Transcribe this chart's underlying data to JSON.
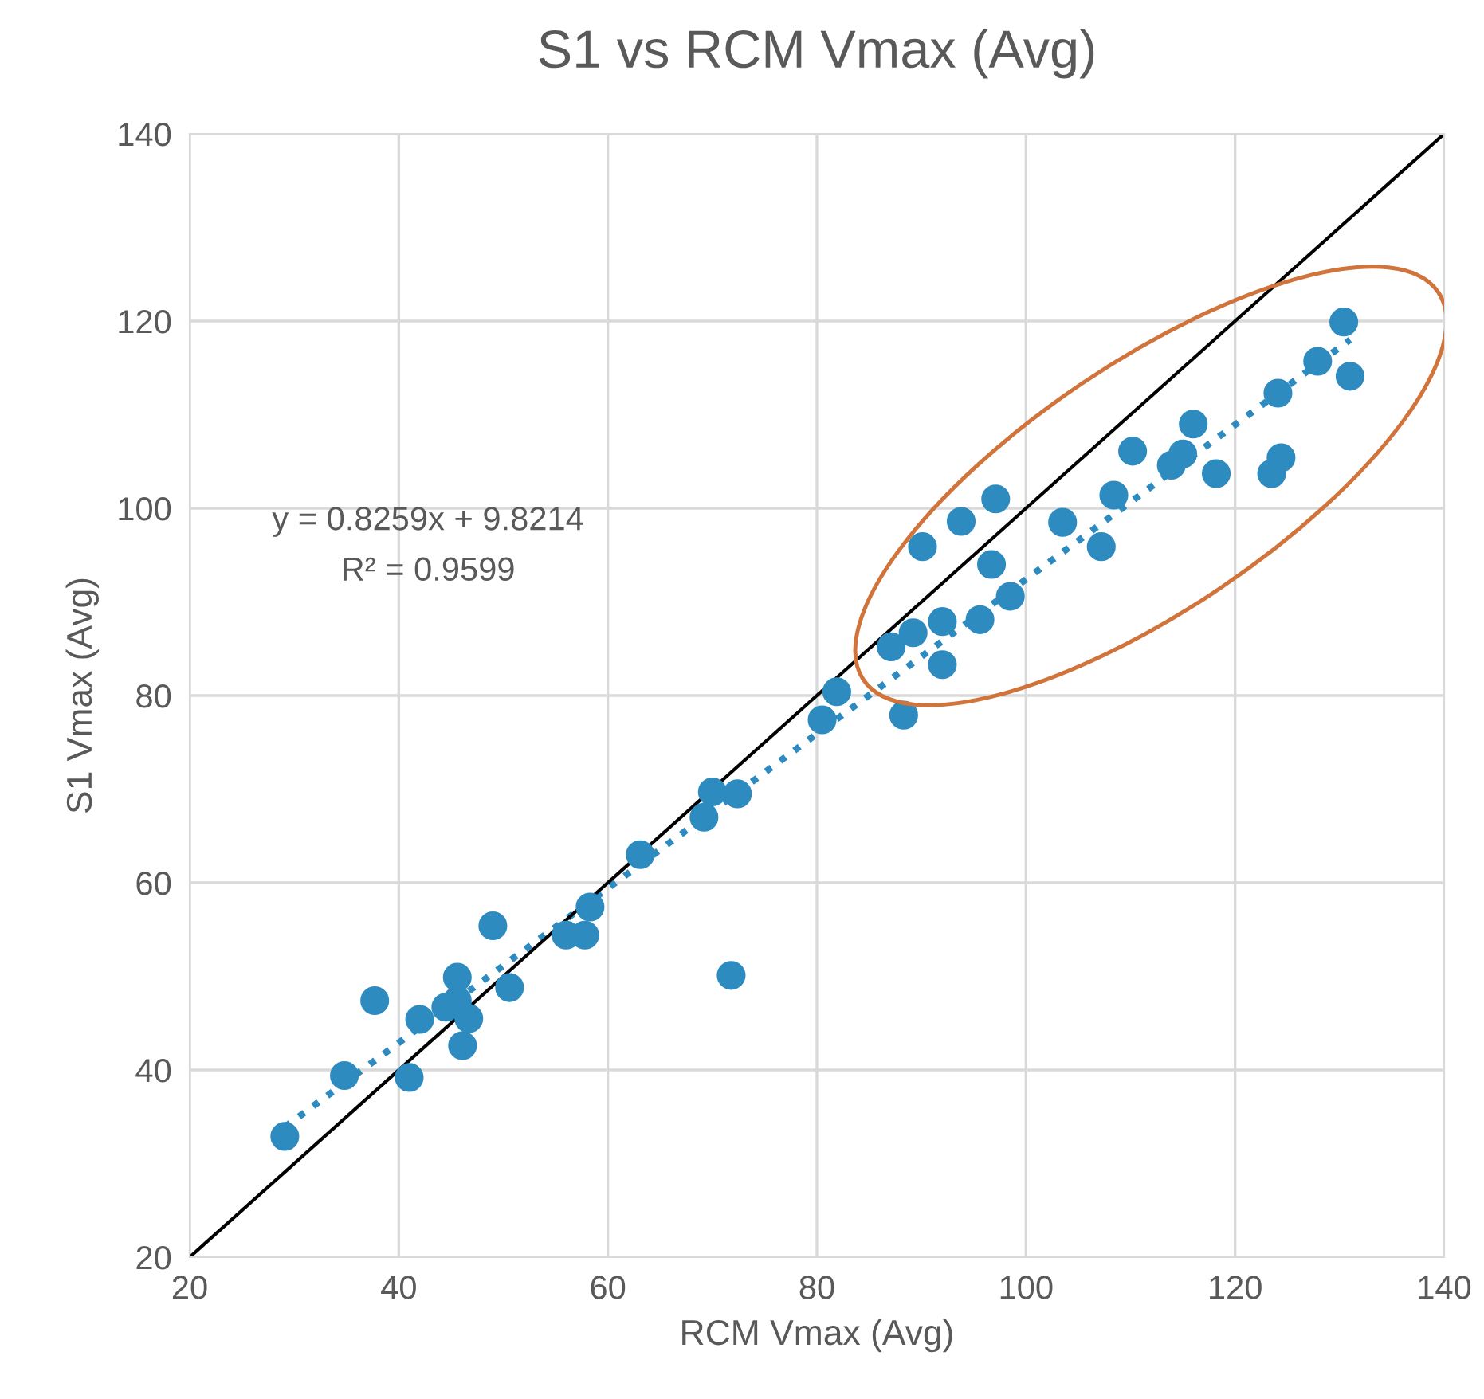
{
  "chart_data": {
    "type": "scatter",
    "title": "S1 vs RCM Vmax (Avg)",
    "xlabel": "RCM Vmax (Avg)",
    "ylabel": "S1 Vmax (Avg)",
    "xlim": [
      20,
      140
    ],
    "ylim": [
      20,
      140
    ],
    "xticks": [
      20,
      40,
      60,
      80,
      100,
      120,
      140
    ],
    "yticks": [
      20,
      40,
      60,
      80,
      100,
      120,
      140
    ],
    "grid": true,
    "marker": "circle",
    "series": [
      {
        "color": "#2e8bc0",
        "x": [
          29.1,
          34.8,
          37.7,
          41.0,
          42.0,
          44.5,
          45.6,
          45.6,
          46.7,
          46.1,
          49.0,
          50.6,
          56.0,
          57.8,
          58.3,
          63.1,
          69.2,
          70.0,
          72.4,
          71.8,
          80.5,
          81.9,
          87.1,
          88.3,
          89.2,
          90.1,
          92.0,
          92.0,
          93.8,
          95.6,
          96.7,
          97.1,
          98.5,
          103.5,
          107.2,
          108.4,
          110.2,
          113.9,
          115.0,
          116.0,
          118.2,
          123.5,
          124.4,
          124.1,
          127.9,
          130.4,
          131.0
        ],
        "values": [
          32.9,
          39.4,
          47.4,
          39.2,
          45.4,
          46.7,
          49.9,
          47.4,
          45.5,
          42.6,
          55.4,
          48.8,
          54.4,
          54.4,
          57.4,
          63.0,
          67.0,
          69.7,
          69.5,
          50.1,
          77.4,
          80.4,
          85.2,
          77.9,
          86.7,
          95.9,
          87.9,
          83.3,
          98.6,
          88.1,
          94.0,
          101.0,
          90.6,
          98.5,
          95.9,
          101.4,
          106.1,
          104.6,
          105.8,
          109.0,
          103.7,
          103.7,
          105.4,
          112.3,
          115.7,
          119.9,
          114.1
        ]
      },
      {
        "type": "line",
        "color": "#2e8bc0",
        "line_style": "dotted",
        "marker": "none",
        "x": [
          29.1,
          131.0
        ],
        "values": [
          33.9,
          118.0
        ]
      },
      {
        "type": "line",
        "color": "#000000",
        "line_style": "solid",
        "marker": "none",
        "x": [
          20,
          140
        ],
        "values": [
          20,
          140
        ]
      }
    ],
    "annotations": [
      "y = 0.8259x + 9.8214",
      "R² = 0.9599"
    ]
  }
}
